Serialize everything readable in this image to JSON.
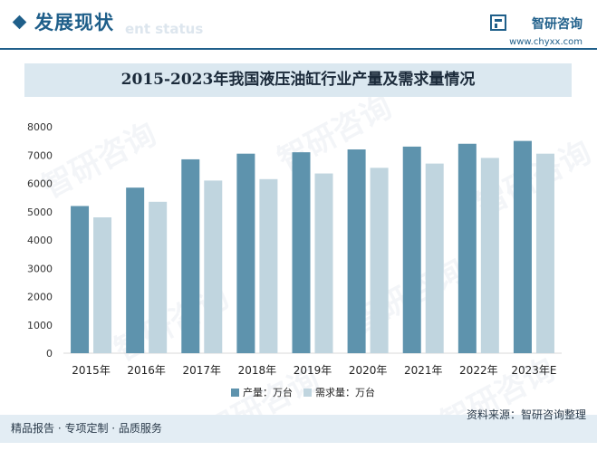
{
  "header": {
    "section_title": "发展现状",
    "section_subtitle": "ent status",
    "brand_name": "智研咨询",
    "brand_url": "www.chyxx.com",
    "brand_icon": "chyxx-logo-icon"
  },
  "footer": {
    "left_text": "精品报告 · 专项定制 · 品质服务",
    "source": "资料来源：智研咨询整理"
  },
  "watermark_text": "智研咨询",
  "colors": {
    "primary": "#1f5f8a",
    "series_production": "#5e93ad",
    "series_demand": "#c0d5df"
  },
  "chart_data": {
    "type": "bar",
    "title": "2015-2023年我国液压油缸行业产量及需求量情况",
    "categories": [
      "2015年",
      "2016年",
      "2017年",
      "2018年",
      "2019年",
      "2020年",
      "2021年",
      "2022年",
      "2023年E"
    ],
    "series": [
      {
        "name": "产量：万台",
        "values": [
          5200,
          5850,
          6850,
          7050,
          7100,
          7200,
          7300,
          7400,
          7500
        ]
      },
      {
        "name": "需求量：万台",
        "values": [
          4800,
          5350,
          6100,
          6150,
          6350,
          6550,
          6700,
          6900,
          7050
        ]
      }
    ],
    "yticks": [
      0,
      1000,
      2000,
      3000,
      4000,
      5000,
      6000,
      7000,
      8000
    ],
    "ylim": [
      0,
      8000
    ],
    "grid": false,
    "legend": "bottom-center"
  }
}
